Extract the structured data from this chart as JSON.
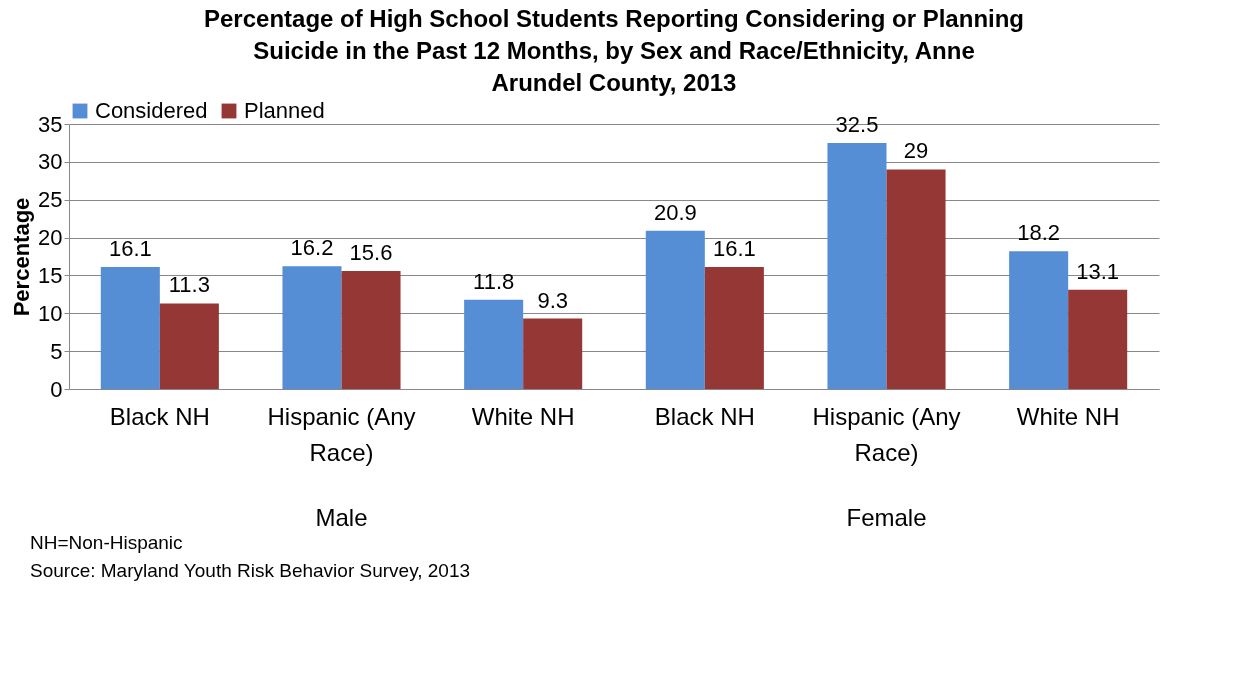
{
  "chart_data": {
    "type": "bar",
    "title": "Percentage of  High School Students Reporting Considering or Planning Suicide in the Past 12 Months, by Sex and Race/Ethnicity, Anne Arundel County, 2013",
    "ylabel": "Percentage",
    "categories": [
      "Black NH",
      "Hispanic (Any Race)",
      "White NH",
      "Black NH",
      "Hispanic (Any Race)",
      "White NH"
    ],
    "series": [
      {
        "name": "Considered",
        "color": "#558ed5",
        "values": [
          16.1,
          16.2,
          11.8,
          20.9,
          32.5,
          18.2
        ]
      },
      {
        "name": "Planned",
        "color": "#953735",
        "values": [
          11.3,
          15.6,
          9.3,
          16.1,
          29,
          13.1
        ]
      }
    ],
    "ylim": [
      0,
      35
    ],
    "yticks": [
      0,
      5,
      10,
      15,
      20,
      25,
      30,
      35
    ],
    "grid": "y",
    "legend": "top",
    "data_labels": true,
    "annotations": [
      "Male",
      "Female",
      "NH=Non-Hispanic",
      "Source: Maryland Youth Risk Behavior Survey, 2013"
    ]
  }
}
